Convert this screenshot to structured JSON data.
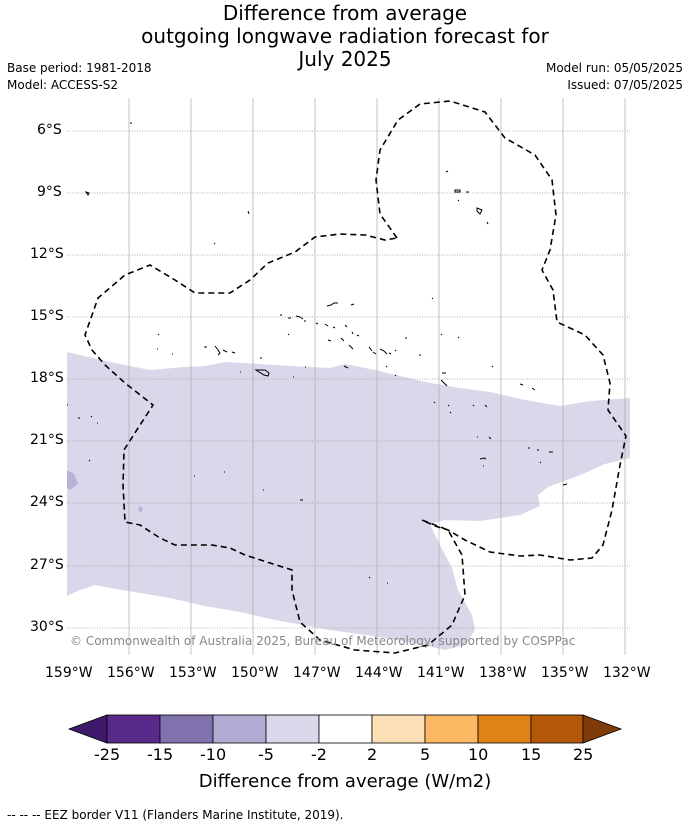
{
  "title_lines": [
    "Difference from average",
    "outgoing longwave radiation forecast for",
    "July 2025"
  ],
  "base_period": "Base period: 1981-2018",
  "model": "Model: ACCESS-S2",
  "model_run": "Model run: 05/05/2025",
  "issued": "Issued: 07/05/2025",
  "copyright": "© Commonwealth of Australia 2025, Bureau of Meteorology, supported by COSPPac",
  "lat_labels": [
    "6°S",
    "9°S",
    "12°S",
    "15°S",
    "18°S",
    "21°S",
    "24°S",
    "27°S",
    "30°S"
  ],
  "lon_labels": [
    "159°W",
    "156°W",
    "153°W",
    "150°W",
    "147°W",
    "144°W",
    "141°W",
    "138°W",
    "135°W",
    "132°W"
  ],
  "colorbar": {
    "title": "Difference from average (W/m2)",
    "ticks": [
      "-25",
      "-15",
      "-10",
      "-5",
      "-2",
      "2",
      "5",
      "10",
      "15",
      "25"
    ],
    "colors": [
      "#3f1a6b",
      "#5a2a8a",
      "#8072ad",
      "#b1abd3",
      "#d9d9eb",
      "#ffffff",
      "#fde0b6",
      "#fdb863",
      "#e08214",
      "#b35806",
      "#7f3b08"
    ]
  },
  "fill_colors": {
    "light_purple": "#d8d8ea",
    "mid_purple": "#b6b2d8"
  },
  "footnote": "-- -- -- EEZ border V11 (Flanders Marine Institute, 2019)."
}
